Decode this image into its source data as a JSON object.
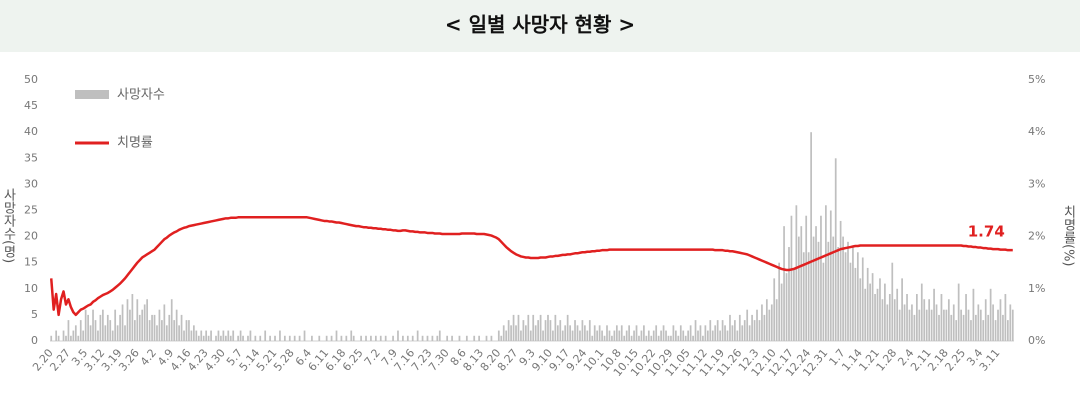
{
  "chart_data": {
    "type": "bar_line",
    "title": "< 일별 사망자 현황 >",
    "y_label": "사망자수(명)",
    "y2_label": "치명률(%)",
    "ylim": [
      0,
      50
    ],
    "yticks": [
      0,
      5,
      10,
      15,
      20,
      25,
      30,
      35,
      40,
      45,
      50
    ],
    "y2lim": [
      0,
      5
    ],
    "y2ticks": [
      {
        "value": 0,
        "label": "0%"
      },
      {
        "value": 1,
        "label": "1%"
      },
      {
        "value": 2,
        "label": "2%"
      },
      {
        "value": 3,
        "label": "3%"
      },
      {
        "value": 4,
        "label": "4%"
      },
      {
        "value": 5,
        "label": "5%"
      }
    ],
    "legend": "top-left",
    "categories": [
      "2.20",
      null,
      null,
      null,
      null,
      null,
      null,
      "2.27",
      null,
      null,
      null,
      null,
      null,
      null,
      "3.5",
      null,
      null,
      null,
      null,
      null,
      null,
      "3.12",
      null,
      null,
      null,
      null,
      null,
      null,
      "3.19",
      null,
      null,
      null,
      null,
      null,
      null,
      "3.26",
      null,
      null,
      null,
      null,
      null,
      null,
      "4.2",
      null,
      null,
      null,
      null,
      null,
      null,
      "4.9",
      null,
      null,
      null,
      null,
      null,
      null,
      "4.16",
      null,
      null,
      null,
      null,
      null,
      null,
      "4.23",
      null,
      null,
      null,
      null,
      null,
      null,
      "4.30",
      null,
      null,
      null,
      null,
      null,
      null,
      "5.7",
      null,
      null,
      null,
      null,
      null,
      null,
      "5.14",
      null,
      null,
      null,
      null,
      null,
      null,
      "5.21",
      null,
      null,
      null,
      null,
      null,
      null,
      "5.28",
      null,
      null,
      null,
      null,
      null,
      null,
      "6.4",
      null,
      null,
      null,
      null,
      null,
      null,
      "6.11",
      null,
      null,
      null,
      null,
      null,
      null,
      "6.18",
      null,
      null,
      null,
      null,
      null,
      null,
      "6.25",
      null,
      null,
      null,
      null,
      null,
      null,
      "7.2",
      null,
      null,
      null,
      null,
      null,
      null,
      "7.9",
      null,
      null,
      null,
      null,
      null,
      null,
      "7.16",
      null,
      null,
      null,
      null,
      null,
      null,
      "7.23",
      null,
      null,
      null,
      null,
      null,
      null,
      "7.30",
      null,
      null,
      null,
      null,
      null,
      null,
      "8.6",
      null,
      null,
      null,
      null,
      null,
      null,
      "8.13",
      null,
      null,
      null,
      null,
      null,
      null,
      "8.20",
      null,
      null,
      null,
      null,
      null,
      null,
      "8.27",
      null,
      null,
      null,
      null,
      null,
      null,
      "9.3",
      null,
      null,
      null,
      null,
      null,
      null,
      "9.10",
      null,
      null,
      null,
      null,
      null,
      null,
      "9.17",
      null,
      null,
      null,
      null,
      null,
      null,
      "9.24",
      null,
      null,
      null,
      null,
      null,
      null,
      "10.1",
      null,
      null,
      null,
      null,
      null,
      null,
      "10.8",
      null,
      null,
      null,
      null,
      null,
      null,
      "10.15",
      null,
      null,
      null,
      null,
      null,
      null,
      "10.22",
      null,
      null,
      null,
      null,
      null,
      null,
      "10.29",
      null,
      null,
      null,
      null,
      null,
      null,
      "11.05",
      null,
      null,
      null,
      null,
      null,
      null,
      "11.12",
      null,
      null,
      null,
      null,
      null,
      null,
      "11.19",
      null,
      null,
      null,
      null,
      null,
      null,
      "11.26",
      null,
      null,
      null,
      null,
      null,
      null,
      "12.3",
      null,
      null,
      null,
      null,
      null,
      null,
      "12.10",
      null,
      null,
      null,
      null,
      null,
      null,
      "12.17",
      null,
      null,
      null,
      null,
      null,
      null,
      "12.24",
      null,
      null,
      null,
      null,
      null,
      null,
      "12.31",
      null,
      null,
      null,
      null,
      null,
      null,
      "1.7",
      null,
      null,
      null,
      null,
      null,
      null,
      "1.14",
      null,
      null,
      null,
      null,
      null,
      null,
      "1.21",
      null,
      null,
      null,
      null,
      null,
      null,
      "1.28",
      null,
      null,
      null,
      null,
      null,
      null,
      "2.4",
      null,
      null,
      null,
      null,
      null,
      null,
      "2.11",
      null,
      null,
      null,
      null,
      null,
      null,
      "2.18",
      null,
      null,
      null,
      null,
      null,
      null,
      "2.25",
      null,
      null,
      null,
      null,
      null,
      null,
      "3.4",
      null,
      null,
      null,
      null,
      null,
      null,
      "3.11",
      null,
      null,
      null,
      null,
      null,
      null
    ],
    "series": [
      {
        "name": "사망자수",
        "color": "#bfbfbf",
        "values": [
          1,
          0,
          2,
          1,
          0,
          2,
          1,
          4,
          1,
          2,
          3,
          1,
          4,
          2,
          6,
          5,
          3,
          6,
          4,
          2,
          5,
          6,
          3,
          5,
          4,
          2,
          6,
          3,
          5,
          7,
          3,
          8,
          6,
          9,
          4,
          8,
          5,
          6,
          7,
          8,
          4,
          5,
          5,
          3,
          6,
          4,
          7,
          3,
          5,
          8,
          4,
          6,
          3,
          5,
          2,
          4,
          4,
          2,
          3,
          2,
          1,
          2,
          1,
          2,
          1,
          2,
          0,
          1,
          2,
          1,
          2,
          1,
          2,
          1,
          2,
          0,
          1,
          2,
          1,
          0,
          1,
          2,
          0,
          1,
          0,
          1,
          0,
          2,
          0,
          1,
          0,
          1,
          0,
          2,
          0,
          1,
          0,
          1,
          0,
          1,
          0,
          1,
          0,
          2,
          0,
          0,
          1,
          0,
          0,
          1,
          0,
          0,
          1,
          0,
          1,
          0,
          2,
          0,
          1,
          0,
          1,
          0,
          2,
          1,
          0,
          0,
          1,
          0,
          1,
          0,
          1,
          0,
          1,
          0,
          1,
          0,
          1,
          0,
          0,
          1,
          0,
          2,
          0,
          1,
          0,
          1,
          0,
          1,
          0,
          2,
          0,
          1,
          0,
          1,
          0,
          1,
          0,
          1,
          2,
          0,
          0,
          1,
          0,
          1,
          0,
          0,
          1,
          0,
          0,
          1,
          0,
          0,
          1,
          0,
          1,
          0,
          0,
          1,
          0,
          1,
          0,
          0,
          2,
          1,
          3,
          2,
          4,
          3,
          5,
          3,
          5,
          2,
          4,
          3,
          5,
          2,
          5,
          3,
          4,
          5,
          2,
          4,
          5,
          4,
          2,
          5,
          3,
          4,
          2,
          3,
          5,
          3,
          2,
          4,
          3,
          2,
          4,
          3,
          2,
          4,
          1,
          3,
          2,
          3,
          2,
          1,
          3,
          2,
          1,
          2,
          3,
          2,
          3,
          1,
          2,
          3,
          1,
          2,
          3,
          1,
          2,
          3,
          1,
          2,
          1,
          2,
          3,
          1,
          2,
          3,
          2,
          1,
          1,
          3,
          2,
          1,
          3,
          2,
          1,
          2,
          3,
          1,
          4,
          2,
          3,
          1,
          3,
          2,
          4,
          2,
          3,
          4,
          2,
          4,
          3,
          2,
          5,
          3,
          4,
          2,
          5,
          3,
          4,
          6,
          3,
          5,
          4,
          6,
          4,
          7,
          5,
          8,
          6,
          7,
          12,
          8,
          15,
          11,
          22,
          13,
          18,
          24,
          14,
          26,
          20,
          22,
          17,
          24,
          17,
          40,
          20,
          22,
          19,
          24,
          15,
          26,
          19,
          25,
          20,
          35,
          18,
          23,
          20,
          17,
          19,
          15,
          18,
          14,
          17,
          12,
          16,
          10,
          14,
          11,
          13,
          9,
          10,
          12,
          8,
          11,
          7,
          9,
          15,
          8,
          10,
          6,
          12,
          7,
          9,
          6,
          7,
          5,
          9,
          6,
          11,
          8,
          6,
          8,
          6,
          10,
          7,
          5,
          9,
          6,
          6,
          8,
          5,
          7,
          4,
          11,
          6,
          5,
          9,
          6,
          4,
          10,
          5,
          7,
          6,
          4,
          8,
          5,
          10,
          7,
          4,
          6,
          8,
          5,
          9,
          4,
          7,
          6
        ]
      },
      {
        "name": "치명률",
        "color": "#e02020",
        "axis": "y2",
        "values": [
          1.2,
          0.6,
          0.9,
          0.5,
          0.8,
          0.95,
          0.7,
          0.8,
          0.65,
          0.55,
          0.5,
          0.55,
          0.6,
          0.62,
          0.65,
          0.68,
          0.7,
          0.75,
          0.78,
          0.82,
          0.85,
          0.88,
          0.9,
          0.92,
          0.95,
          0.98,
          1.02,
          1.06,
          1.1,
          1.15,
          1.2,
          1.26,
          1.32,
          1.38,
          1.44,
          1.5,
          1.55,
          1.6,
          1.63,
          1.66,
          1.69,
          1.72,
          1.75,
          1.8,
          1.85,
          1.9,
          1.95,
          1.98,
          2.02,
          2.05,
          2.08,
          2.1,
          2.13,
          2.15,
          2.17,
          2.18,
          2.2,
          2.21,
          2.22,
          2.23,
          2.24,
          2.25,
          2.26,
          2.27,
          2.28,
          2.29,
          2.3,
          2.31,
          2.32,
          2.33,
          2.34,
          2.35,
          2.35,
          2.36,
          2.36,
          2.36,
          2.37,
          2.37,
          2.37,
          2.37,
          2.37,
          2.37,
          2.37,
          2.37,
          2.37,
          2.37,
          2.37,
          2.37,
          2.37,
          2.37,
          2.37,
          2.37,
          2.37,
          2.37,
          2.37,
          2.37,
          2.37,
          2.37,
          2.37,
          2.37,
          2.37,
          2.37,
          2.37,
          2.37,
          2.37,
          2.36,
          2.35,
          2.34,
          2.33,
          2.32,
          2.31,
          2.3,
          2.3,
          2.29,
          2.29,
          2.28,
          2.27,
          2.27,
          2.26,
          2.25,
          2.24,
          2.23,
          2.22,
          2.21,
          2.2,
          2.2,
          2.19,
          2.18,
          2.18,
          2.17,
          2.17,
          2.16,
          2.16,
          2.15,
          2.15,
          2.14,
          2.14,
          2.13,
          2.13,
          2.12,
          2.12,
          2.11,
          2.11,
          2.12,
          2.12,
          2.11,
          2.1,
          2.1,
          2.09,
          2.09,
          2.08,
          2.08,
          2.08,
          2.07,
          2.07,
          2.07,
          2.06,
          2.06,
          2.06,
          2.05,
          2.05,
          2.05,
          2.05,
          2.05,
          2.05,
          2.05,
          2.05,
          2.06,
          2.06,
          2.06,
          2.06,
          2.06,
          2.06,
          2.05,
          2.05,
          2.05,
          2.05,
          2.04,
          2.03,
          2.02,
          2.0,
          1.98,
          1.95,
          1.9,
          1.85,
          1.8,
          1.76,
          1.72,
          1.69,
          1.66,
          1.64,
          1.62,
          1.61,
          1.6,
          1.6,
          1.59,
          1.59,
          1.59,
          1.59,
          1.6,
          1.6,
          1.6,
          1.61,
          1.62,
          1.62,
          1.63,
          1.63,
          1.64,
          1.65,
          1.65,
          1.66,
          1.66,
          1.67,
          1.68,
          1.68,
          1.69,
          1.7,
          1.7,
          1.71,
          1.71,
          1.72,
          1.72,
          1.73,
          1.73,
          1.74,
          1.74,
          1.74,
          1.75,
          1.75,
          1.75,
          1.75,
          1.75,
          1.75,
          1.75,
          1.75,
          1.75,
          1.75,
          1.75,
          1.75,
          1.75,
          1.75,
          1.75,
          1.75,
          1.75,
          1.75,
          1.75,
          1.75,
          1.75,
          1.75,
          1.75,
          1.75,
          1.75,
          1.75,
          1.75,
          1.75,
          1.75,
          1.75,
          1.75,
          1.75,
          1.75,
          1.75,
          1.75,
          1.75,
          1.75,
          1.75,
          1.75,
          1.75,
          1.75,
          1.75,
          1.75,
          1.74,
          1.74,
          1.74,
          1.74,
          1.73,
          1.73,
          1.72,
          1.72,
          1.71,
          1.7,
          1.69,
          1.68,
          1.67,
          1.66,
          1.64,
          1.62,
          1.6,
          1.58,
          1.56,
          1.54,
          1.52,
          1.5,
          1.48,
          1.46,
          1.44,
          1.42,
          1.4,
          1.38,
          1.37,
          1.36,
          1.36,
          1.37,
          1.38,
          1.4,
          1.42,
          1.44,
          1.46,
          1.48,
          1.5,
          1.52,
          1.54,
          1.56,
          1.58,
          1.6,
          1.62,
          1.64,
          1.66,
          1.68,
          1.7,
          1.72,
          1.74,
          1.76,
          1.77,
          1.78,
          1.79,
          1.8,
          1.81,
          1.82,
          1.82,
          1.83,
          1.83,
          1.83,
          1.83,
          1.83,
          1.83,
          1.83,
          1.83,
          1.83,
          1.83,
          1.83,
          1.83,
          1.83,
          1.83,
          1.83,
          1.83,
          1.83,
          1.83,
          1.83,
          1.83,
          1.83,
          1.83,
          1.83,
          1.83,
          1.83,
          1.83,
          1.83,
          1.83,
          1.83,
          1.83,
          1.83,
          1.83,
          1.83,
          1.83,
          1.83,
          1.83,
          1.83,
          1.83,
          1.83,
          1.83,
          1.83,
          1.83,
          1.82,
          1.82,
          1.81,
          1.81,
          1.8,
          1.8,
          1.79,
          1.79,
          1.78,
          1.78,
          1.77,
          1.77,
          1.76,
          1.76,
          1.76,
          1.75,
          1.75,
          1.75,
          1.74,
          1.74,
          1.74
        ]
      }
    ]
  }
}
